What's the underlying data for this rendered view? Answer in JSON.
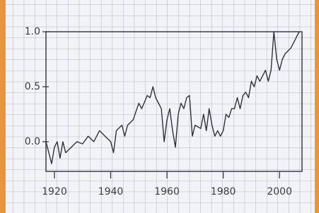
{
  "chart_data": {
    "type": "line",
    "x": [
      1917,
      1918,
      1919,
      1920,
      1921,
      1922,
      1923,
      1924,
      1926,
      1928,
      1930,
      1932,
      1934,
      1936,
      1938,
      1940,
      1941,
      1942,
      1944,
      1945,
      1946,
      1948,
      1950,
      1951,
      1953,
      1954,
      1955,
      1956,
      1958,
      1959,
      1960,
      1961,
      1962,
      1963,
      1964,
      1965,
      1966,
      1967,
      1968,
      1969,
      1970,
      1972,
      1973,
      1974,
      1975,
      1976,
      1977,
      1978,
      1979,
      1980,
      1981,
      1982,
      1983,
      1984,
      1985,
      1986,
      1987,
      1988,
      1989,
      1990,
      1991,
      1992,
      1993,
      1994,
      1995,
      1996,
      1997,
      1998,
      1999,
      2000,
      2001,
      2002,
      2004,
      2006,
      2007
    ],
    "series": [
      {
        "color": "#2f323c",
        "values": [
          0.0,
          -0.1,
          -0.2,
          -0.05,
          0.0,
          -0.15,
          0.0,
          -0.1,
          -0.05,
          0.0,
          -0.02,
          0.05,
          0.0,
          0.1,
          0.05,
          0.0,
          -0.1,
          0.1,
          0.15,
          0.05,
          0.15,
          0.2,
          0.35,
          0.3,
          0.42,
          0.4,
          0.5,
          0.4,
          0.3,
          0.0,
          0.2,
          0.3,
          0.1,
          -0.05,
          0.25,
          0.35,
          0.3,
          0.4,
          0.42,
          0.05,
          0.15,
          0.12,
          0.25,
          0.1,
          0.3,
          0.15,
          0.05,
          0.1,
          0.05,
          0.1,
          0.25,
          0.22,
          0.3,
          0.3,
          0.4,
          0.3,
          0.42,
          0.45,
          0.4,
          0.55,
          0.5,
          0.6,
          0.55,
          0.6,
          0.65,
          0.55,
          0.65,
          1.0,
          0.75,
          0.65,
          0.75,
          0.8,
          0.85,
          0.95,
          1.0
        ]
      }
    ],
    "xlim": [
      1917,
      2008
    ],
    "ylim": [
      -0.27,
      1.0
    ],
    "xticks": [
      1920,
      1940,
      1960,
      1980,
      2000
    ],
    "yticks": [
      {
        "value": 0,
        "label": "0.0"
      },
      0.5,
      {
        "value": 1,
        "label": "1.0"
      }
    ]
  }
}
